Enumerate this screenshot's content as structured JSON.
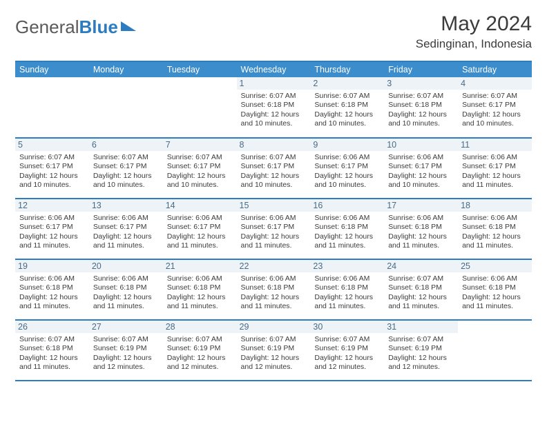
{
  "logo": {
    "part1": "General",
    "part2": "Blue"
  },
  "header": {
    "month_title": "May 2024",
    "location": "Sedinginan, Indonesia"
  },
  "colors": {
    "accent": "#2d7cc0",
    "header_bg": "#3c8dcc",
    "daynum_bg": "#eef3f7",
    "daynum_fg": "#4a6b85",
    "text": "#3b3b3b"
  },
  "weekdays": [
    "Sunday",
    "Monday",
    "Tuesday",
    "Wednesday",
    "Thursday",
    "Friday",
    "Saturday"
  ],
  "weeks": [
    [
      null,
      null,
      null,
      {
        "n": "1",
        "sr": "6:07 AM",
        "ss": "6:18 PM",
        "dl": "12 hours and 10 minutes."
      },
      {
        "n": "2",
        "sr": "6:07 AM",
        "ss": "6:18 PM",
        "dl": "12 hours and 10 minutes."
      },
      {
        "n": "3",
        "sr": "6:07 AM",
        "ss": "6:18 PM",
        "dl": "12 hours and 10 minutes."
      },
      {
        "n": "4",
        "sr": "6:07 AM",
        "ss": "6:17 PM",
        "dl": "12 hours and 10 minutes."
      }
    ],
    [
      {
        "n": "5",
        "sr": "6:07 AM",
        "ss": "6:17 PM",
        "dl": "12 hours and 10 minutes."
      },
      {
        "n": "6",
        "sr": "6:07 AM",
        "ss": "6:17 PM",
        "dl": "12 hours and 10 minutes."
      },
      {
        "n": "7",
        "sr": "6:07 AM",
        "ss": "6:17 PM",
        "dl": "12 hours and 10 minutes."
      },
      {
        "n": "8",
        "sr": "6:07 AM",
        "ss": "6:17 PM",
        "dl": "12 hours and 10 minutes."
      },
      {
        "n": "9",
        "sr": "6:06 AM",
        "ss": "6:17 PM",
        "dl": "12 hours and 10 minutes."
      },
      {
        "n": "10",
        "sr": "6:06 AM",
        "ss": "6:17 PM",
        "dl": "12 hours and 10 minutes."
      },
      {
        "n": "11",
        "sr": "6:06 AM",
        "ss": "6:17 PM",
        "dl": "12 hours and 11 minutes."
      }
    ],
    [
      {
        "n": "12",
        "sr": "6:06 AM",
        "ss": "6:17 PM",
        "dl": "12 hours and 11 minutes."
      },
      {
        "n": "13",
        "sr": "6:06 AM",
        "ss": "6:17 PM",
        "dl": "12 hours and 11 minutes."
      },
      {
        "n": "14",
        "sr": "6:06 AM",
        "ss": "6:17 PM",
        "dl": "12 hours and 11 minutes."
      },
      {
        "n": "15",
        "sr": "6:06 AM",
        "ss": "6:17 PM",
        "dl": "12 hours and 11 minutes."
      },
      {
        "n": "16",
        "sr": "6:06 AM",
        "ss": "6:18 PM",
        "dl": "12 hours and 11 minutes."
      },
      {
        "n": "17",
        "sr": "6:06 AM",
        "ss": "6:18 PM",
        "dl": "12 hours and 11 minutes."
      },
      {
        "n": "18",
        "sr": "6:06 AM",
        "ss": "6:18 PM",
        "dl": "12 hours and 11 minutes."
      }
    ],
    [
      {
        "n": "19",
        "sr": "6:06 AM",
        "ss": "6:18 PM",
        "dl": "12 hours and 11 minutes."
      },
      {
        "n": "20",
        "sr": "6:06 AM",
        "ss": "6:18 PM",
        "dl": "12 hours and 11 minutes."
      },
      {
        "n": "21",
        "sr": "6:06 AM",
        "ss": "6:18 PM",
        "dl": "12 hours and 11 minutes."
      },
      {
        "n": "22",
        "sr": "6:06 AM",
        "ss": "6:18 PM",
        "dl": "12 hours and 11 minutes."
      },
      {
        "n": "23",
        "sr": "6:06 AM",
        "ss": "6:18 PM",
        "dl": "12 hours and 11 minutes."
      },
      {
        "n": "24",
        "sr": "6:07 AM",
        "ss": "6:18 PM",
        "dl": "12 hours and 11 minutes."
      },
      {
        "n": "25",
        "sr": "6:06 AM",
        "ss": "6:18 PM",
        "dl": "12 hours and 11 minutes."
      }
    ],
    [
      {
        "n": "26",
        "sr": "6:07 AM",
        "ss": "6:18 PM",
        "dl": "12 hours and 11 minutes."
      },
      {
        "n": "27",
        "sr": "6:07 AM",
        "ss": "6:19 PM",
        "dl": "12 hours and 12 minutes."
      },
      {
        "n": "28",
        "sr": "6:07 AM",
        "ss": "6:19 PM",
        "dl": "12 hours and 12 minutes."
      },
      {
        "n": "29",
        "sr": "6:07 AM",
        "ss": "6:19 PM",
        "dl": "12 hours and 12 minutes."
      },
      {
        "n": "30",
        "sr": "6:07 AM",
        "ss": "6:19 PM",
        "dl": "12 hours and 12 minutes."
      },
      {
        "n": "31",
        "sr": "6:07 AM",
        "ss": "6:19 PM",
        "dl": "12 hours and 12 minutes."
      },
      null
    ]
  ],
  "labels": {
    "sunrise": "Sunrise: ",
    "sunset": "Sunset: ",
    "daylight": "Daylight: "
  }
}
